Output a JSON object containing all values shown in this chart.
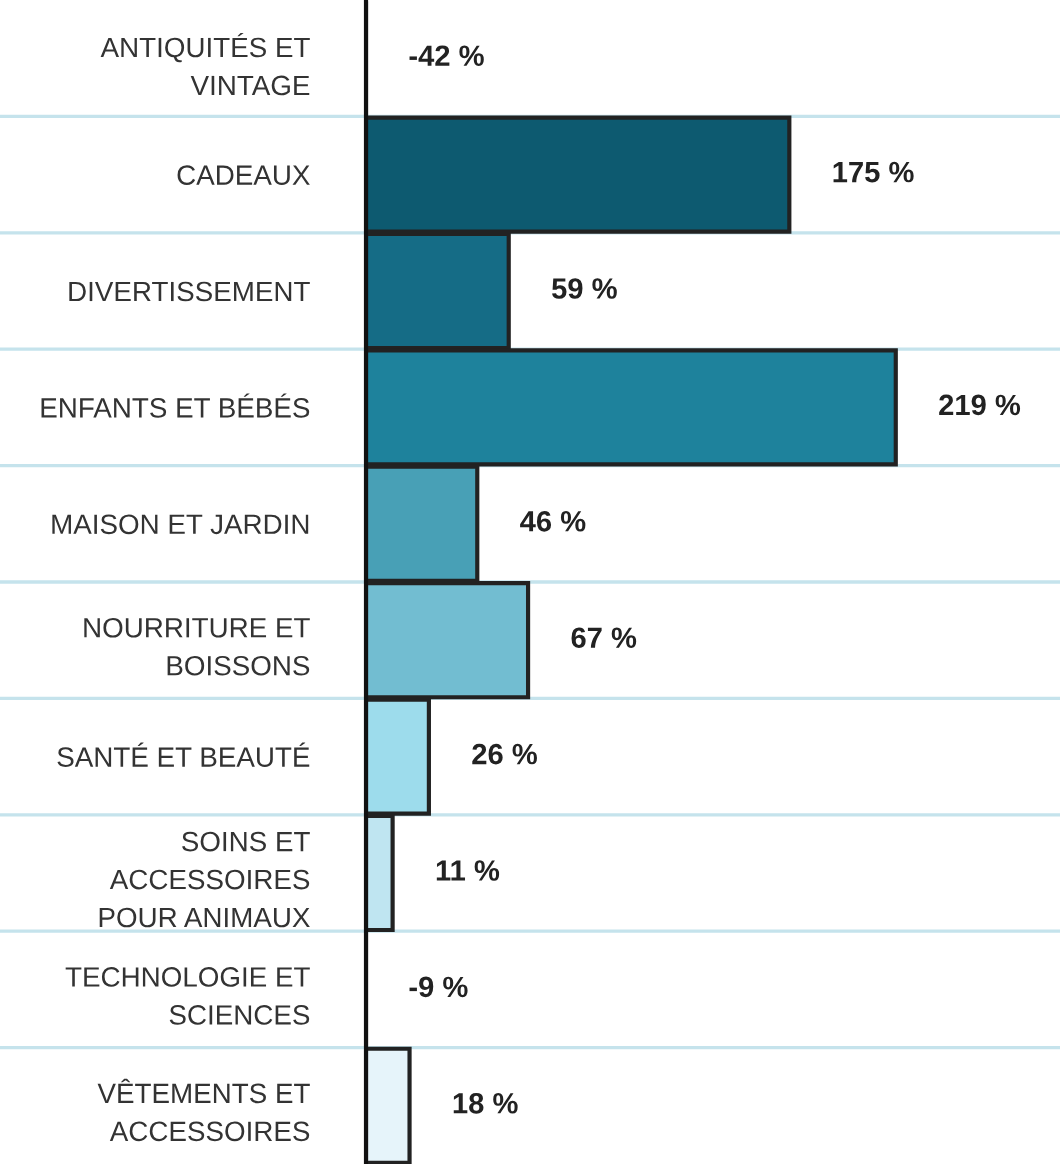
{
  "chart_data": {
    "type": "bar",
    "orientation": "horizontal",
    "categories": [
      "ANTIQUITÉS ET\nVINTAGE",
      "CADEAUX",
      "DIVERTISSEMENT",
      "ENFANTS ET BÉBÉS",
      "MAISON ET JARDIN",
      "NOURRITURE ET\nBOISSONS",
      "SANTÉ ET BEAUTÉ",
      "SOINS ET\nACCESSOIRES\nPOUR ANIMAUX",
      "TECHNOLOGIE ET\nSCIENCES",
      "VÊTEMENTS ET\nACCESSOIRES"
    ],
    "values": [
      null,
      175,
      59,
      219,
      46,
      67,
      26,
      11,
      null,
      18
    ],
    "colors": [
      "#0d5a70",
      "#0d5a70",
      "#156c86",
      "#1e829c",
      "#48a0b6",
      "#72bdd1",
      "#9ddcec",
      "#bfe5f1",
      "#dff0f7",
      "#e6f4fa"
    ],
    "value_labels": [
      "-42 %",
      "175 %",
      "59 %",
      "219 %",
      "46 %",
      "67 %",
      "26 %",
      "11 %",
      "-9 %",
      "18 %"
    ],
    "grid": "y"
  }
}
